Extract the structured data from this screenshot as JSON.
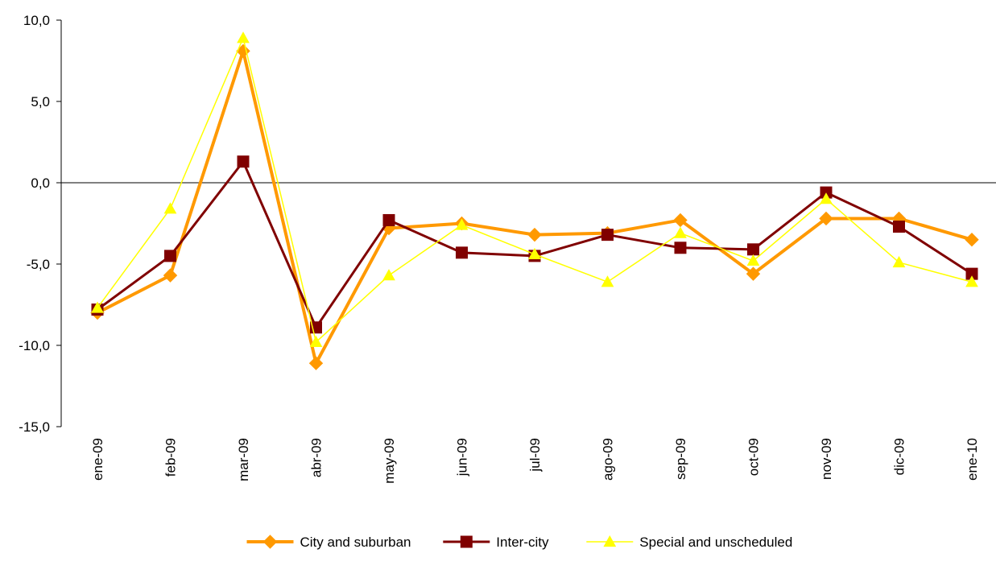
{
  "chart_data": {
    "type": "line",
    "title": "",
    "xlabel": "",
    "ylabel": "",
    "ylim": [
      -15,
      10
    ],
    "yticks": [
      "10,0",
      "5,0",
      "0,0",
      "-5,0",
      "-10,0",
      "-15,0"
    ],
    "categories": [
      "ene-09",
      "feb-09",
      "mar-09",
      "abr-09",
      "may-09",
      "jun-09",
      "jul-09",
      "ago-09",
      "sep-09",
      "oct-09",
      "nov-09",
      "dic-09",
      "ene-10"
    ],
    "legend_position": "bottom",
    "grid": false,
    "series": [
      {
        "name": "City and suburban",
        "color": "#FF9900",
        "marker": "diamond",
        "values": [
          -8.0,
          -5.7,
          8.1,
          -11.1,
          -2.8,
          -2.5,
          -3.2,
          -3.1,
          -2.3,
          -5.6,
          -2.2,
          -2.2,
          -3.5
        ]
      },
      {
        "name": "Inter-city",
        "color": "#800000",
        "marker": "square",
        "values": [
          -7.8,
          -4.5,
          1.3,
          -8.9,
          -2.3,
          -4.3,
          -4.5,
          -3.2,
          -4.0,
          -4.1,
          -0.6,
          -2.7,
          -5.6
        ]
      },
      {
        "name": "Special and unscheduled",
        "color": "#FFFF00",
        "marker": "triangle",
        "values": [
          -7.7,
          -1.6,
          8.9,
          -9.8,
          -5.7,
          -2.6,
          -4.4,
          -6.1,
          -3.1,
          -4.8,
          -1.0,
          -4.9,
          -6.1
        ]
      }
    ]
  }
}
